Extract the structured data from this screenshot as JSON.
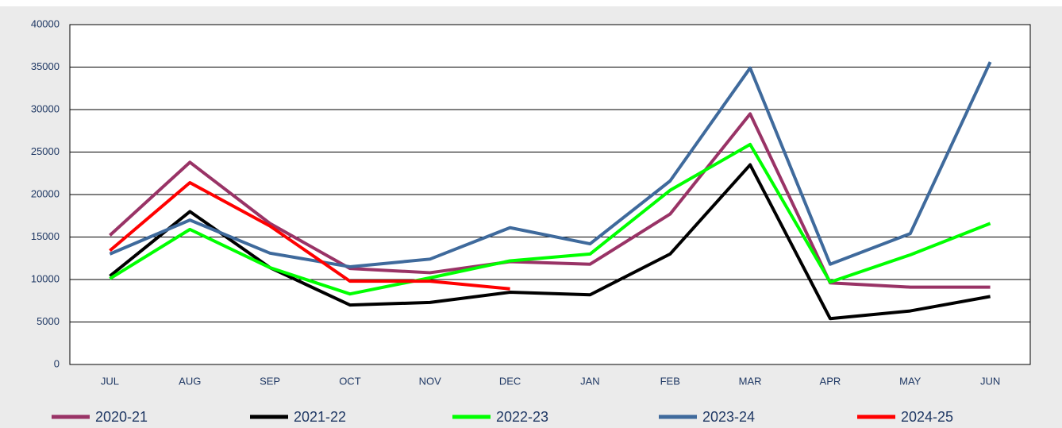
{
  "chart_data": {
    "type": "line",
    "categories": [
      "JUL",
      "AUG",
      "SEP",
      "OCT",
      "NOV",
      "DEC",
      "JAN",
      "FEB",
      "MAR",
      "APR",
      "MAY",
      "JUN"
    ],
    "series": [
      {
        "name": "2020-21",
        "color": "#993366",
        "values": [
          15200,
          23800,
          16600,
          11300,
          10800,
          12100,
          11800,
          17700,
          29500,
          9600,
          9100,
          9100
        ]
      },
      {
        "name": "2021-22",
        "color": "#000000",
        "values": [
          10400,
          18000,
          11400,
          7000,
          7300,
          8500,
          8200,
          13000,
          23500,
          5400,
          6300,
          8000
        ]
      },
      {
        "name": "2022-23",
        "color": "#00ff00",
        "values": [
          10100,
          15900,
          11400,
          8300,
          10200,
          12200,
          13000,
          20500,
          25900,
          9700,
          12900,
          16600
        ]
      },
      {
        "name": "2023-24",
        "color": "#3f6a9c",
        "values": [
          13000,
          17000,
          13100,
          11500,
          12400,
          16100,
          14200,
          21600,
          34900,
          11800,
          15400,
          35600
        ]
      },
      {
        "name": "2024-25",
        "color": "#ff0000",
        "values": [
          13400,
          21400,
          16300,
          9800,
          9800,
          8900,
          null,
          null,
          null,
          null,
          null,
          null
        ]
      }
    ],
    "ylim": [
      0,
      40000
    ],
    "yticks": [
      0,
      5000,
      10000,
      15000,
      20000,
      25000,
      30000,
      35000,
      40000
    ],
    "grid": true,
    "legend": "bottom"
  }
}
